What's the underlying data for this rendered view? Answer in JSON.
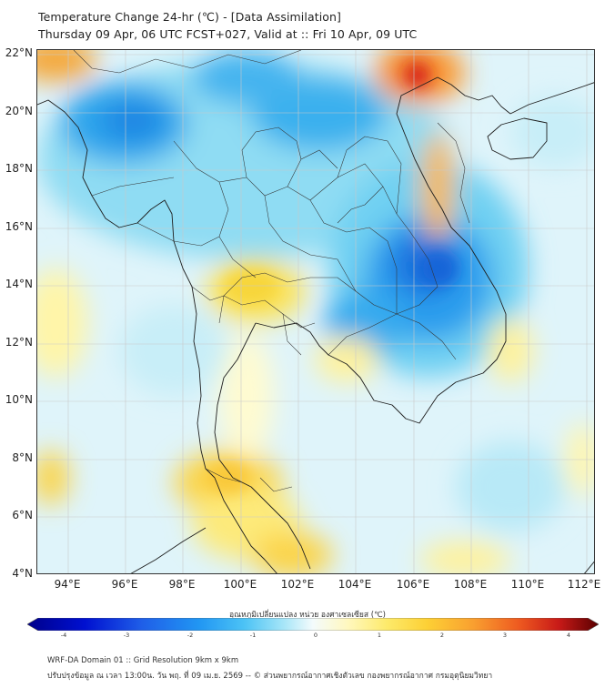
{
  "header": {
    "title": "Temperature Change 24-hr (℃) - [Data Assimilation]",
    "subtitle": "Thursday 09 Apr, 06 UTC FCST+027, Valid at :: Fri 10 Apr, 09 UTC"
  },
  "map": {
    "lat_labels": [
      "22°N",
      "20°N",
      "18°N",
      "16°N",
      "14°N",
      "12°N",
      "10°N",
      "8°N",
      "6°N",
      "4°N"
    ],
    "lon_labels": [
      "94°E",
      "96°E",
      "98°E",
      "100°E",
      "102°E",
      "104°E",
      "106°E",
      "108°E",
      "110°E",
      "112°E"
    ],
    "lat_range": [
      4,
      22
    ],
    "lon_range": [
      93,
      112.2
    ]
  },
  "colorbar": {
    "title": "อุณหภูมิเปลี่ยนแปลง หน่วย องศาเซลเซียส (℃)",
    "min": -4,
    "max": 4,
    "ticks": [
      "-4",
      "-3",
      "-2",
      "-1",
      "0",
      "1",
      "2",
      "3",
      "4"
    ],
    "colors": [
      "#00008b",
      "#0000cd",
      "#1f5ee8",
      "#2196f3",
      "#29b6f6",
      "#6fd2f5",
      "#b3ebf8",
      "#e6f8fb",
      "#fffde7",
      "#fff59d",
      "#fdd835",
      "#f9b233",
      "#f57c00",
      "#e53935",
      "#b71c1c",
      "#6d0000"
    ]
  },
  "footer": {
    "line1": "WRF-DA Domain 01 :: Grid Resolution 9km x 9km",
    "line2": "ปรับปรุงข้อมูล ณ เวลา 13:00น. วัน พฤ. ที่ 09 เม.ย. 2569 -- © ส่วนพยากรณ์อากาศเชิงตัวเลข กองพยากรณ์อากาศ กรมอุตุนิยมวิทยา"
  }
}
